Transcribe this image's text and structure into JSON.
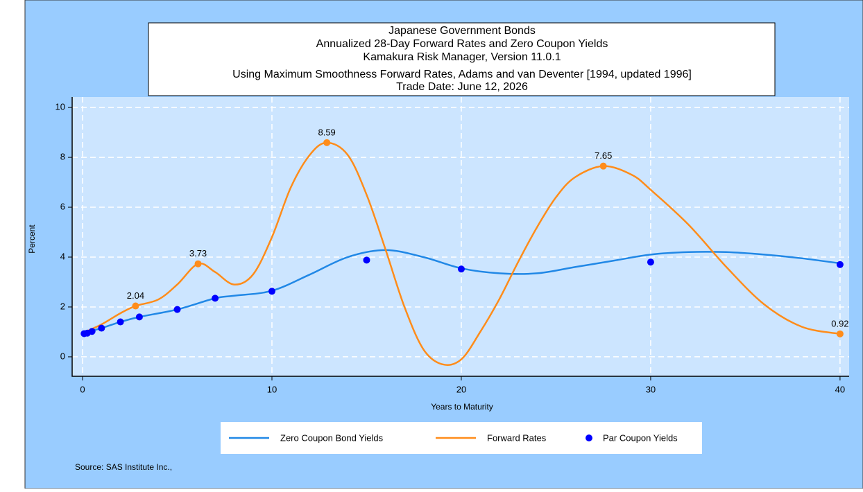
{
  "chart_data": {
    "type": "line",
    "title": [
      "Japanese Government Bonds",
      "Annualized 28-Day Forward Rates and Zero Coupon Yields",
      "Kamakura Risk Manager, Version 11.0.1",
      "Using Maximum Smoothness Forward Rates, Adams and van Deventer [1994, updated 1996]",
      "Trade Date: June 12, 2026"
    ],
    "x_label": "Years to Maturity",
    "y_label": "Percent",
    "source": "Source: SAS Institute Inc.,",
    "xlim": [
      -0.55,
      40.48
    ],
    "ylim": [
      -0.78,
      10.42
    ],
    "xticks": [
      0,
      10,
      20,
      30,
      40
    ],
    "yticks": [
      0,
      2,
      4,
      6,
      8,
      10
    ],
    "grid": true,
    "series": [
      {
        "name": "Zero Coupon Bond Yields",
        "color": "#2188e6",
        "kind": "line",
        "x": [
          0,
          0.5,
          1,
          2,
          3,
          5,
          7,
          8,
          10,
          12,
          14,
          16,
          18,
          20,
          22,
          24,
          26,
          28,
          30,
          32,
          34,
          36,
          38,
          40
        ],
        "values": [
          0.95,
          1.05,
          1.15,
          1.4,
          1.6,
          1.9,
          2.35,
          2.45,
          2.65,
          3.3,
          4.0,
          4.28,
          4.0,
          3.55,
          3.35,
          3.35,
          3.6,
          3.85,
          4.1,
          4.2,
          4.2,
          4.1,
          3.95,
          3.75
        ]
      },
      {
        "name": "Forward Rates",
        "color": "#ff8c1a",
        "kind": "line",
        "x": [
          0,
          1,
          2,
          2.8,
          4,
          5,
          6.1,
          7,
          8,
          9,
          10,
          11,
          12,
          12.9,
          14,
          15,
          16,
          17,
          18,
          19,
          20,
          21,
          22,
          23,
          24,
          25,
          26,
          27.5,
          29,
          30,
          32,
          34,
          36,
          38,
          40
        ],
        "values": [
          0.95,
          1.3,
          1.75,
          2.04,
          2.3,
          2.9,
          3.73,
          3.4,
          2.9,
          3.3,
          4.8,
          6.8,
          8.1,
          8.59,
          8.1,
          6.5,
          4.3,
          2.0,
          0.3,
          -0.3,
          -0.1,
          1.0,
          2.3,
          3.8,
          5.2,
          6.4,
          7.2,
          7.65,
          7.3,
          6.7,
          5.3,
          3.6,
          2.1,
          1.2,
          0.92
        ],
        "labels": {
          "x": [
            2.8,
            6.1,
            12.9,
            27.5,
            40
          ],
          "values": [
            2.04,
            3.73,
            8.59,
            7.65,
            0.92
          ]
        }
      },
      {
        "name": "Par Coupon Yields",
        "color": "#0000ff",
        "kind": "scatter",
        "x": [
          0.083,
          0.25,
          0.5,
          1,
          2,
          3,
          5,
          7,
          10,
          15,
          20,
          30,
          40
        ],
        "values": [
          0.93,
          0.95,
          1.02,
          1.15,
          1.4,
          1.6,
          1.9,
          2.35,
          2.63,
          3.88,
          3.52,
          3.8,
          3.7
        ]
      }
    ]
  }
}
